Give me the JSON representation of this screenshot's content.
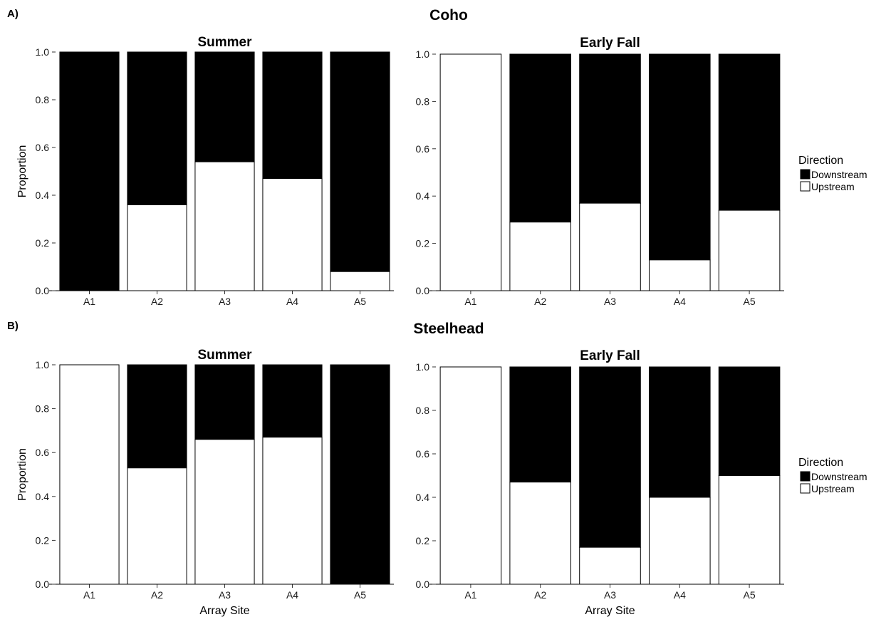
{
  "legend": {
    "title": "Direction",
    "items": [
      {
        "label": "Downstream",
        "color": "#000000"
      },
      {
        "label": "Upstream",
        "color": "#ffffff"
      }
    ]
  },
  "chart_data": [
    {
      "type": "bar",
      "stacked": true,
      "panel_label": "A)",
      "species": "Coho",
      "title": "Summer",
      "ylabel": "Proportion",
      "xlabel": "",
      "ylim": [
        0,
        1
      ],
      "yticks": [
        "0.0",
        "0.2",
        "0.4",
        "0.6",
        "0.8",
        "1.0"
      ],
      "categories": [
        "A1",
        "A2",
        "A3",
        "A4",
        "A5"
      ],
      "series": [
        {
          "name": "Upstream",
          "values": [
            0.0,
            0.36,
            0.54,
            0.47,
            0.08
          ]
        },
        {
          "name": "Downstream",
          "values": [
            1.0,
            0.64,
            0.46,
            0.53,
            0.92
          ]
        }
      ]
    },
    {
      "type": "bar",
      "stacked": true,
      "panel_label": "A)",
      "species": "Coho",
      "title": "Early Fall",
      "ylabel": "",
      "xlabel": "",
      "ylim": [
        0,
        1
      ],
      "yticks": [
        "0.0",
        "0.2",
        "0.4",
        "0.6",
        "0.8",
        "1.0"
      ],
      "categories": [
        "A1",
        "A2",
        "A3",
        "A4",
        "A5"
      ],
      "series": [
        {
          "name": "Upstream",
          "values": [
            1.0,
            0.29,
            0.37,
            0.13,
            0.34
          ]
        },
        {
          "name": "Downstream",
          "values": [
            0.0,
            0.71,
            0.63,
            0.87,
            0.66
          ]
        }
      ]
    },
    {
      "type": "bar",
      "stacked": true,
      "panel_label": "B)",
      "species": "Steelhead",
      "title": "Summer",
      "ylabel": "Proportion",
      "xlabel": "Array Site",
      "ylim": [
        0,
        1
      ],
      "yticks": [
        "0.0",
        "0.2",
        "0.4",
        "0.6",
        "0.8",
        "1.0"
      ],
      "categories": [
        "A1",
        "A2",
        "A3",
        "A4",
        "A5"
      ],
      "series": [
        {
          "name": "Upstream",
          "values": [
            1.0,
            0.53,
            0.66,
            0.67,
            0.0
          ]
        },
        {
          "name": "Downstream",
          "values": [
            0.0,
            0.47,
            0.34,
            0.33,
            1.0
          ]
        }
      ]
    },
    {
      "type": "bar",
      "stacked": true,
      "panel_label": "B)",
      "species": "Steelhead",
      "title": "Early Fall",
      "ylabel": "",
      "xlabel": "Array Site",
      "ylim": [
        0,
        1
      ],
      "yticks": [
        "0.0",
        "0.2",
        "0.4",
        "0.6",
        "0.8",
        "1.0"
      ],
      "categories": [
        "A1",
        "A2",
        "A3",
        "A4",
        "A5"
      ],
      "series": [
        {
          "name": "Upstream",
          "values": [
            1.0,
            0.47,
            0.17,
            0.4,
            0.5
          ]
        },
        {
          "name": "Downstream",
          "values": [
            0.0,
            0.53,
            0.83,
            0.6,
            0.5
          ]
        }
      ]
    }
  ]
}
